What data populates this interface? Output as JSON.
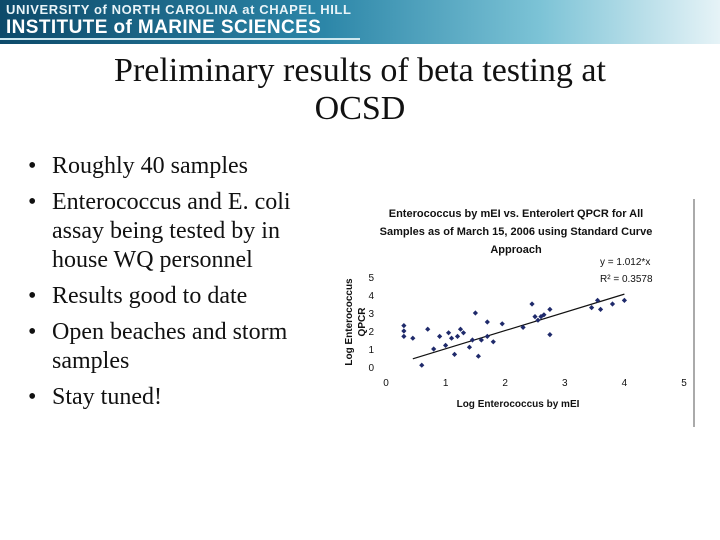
{
  "banner": {
    "line1": "UNIVERSITY of NORTH CAROLINA at CHAPEL HILL",
    "line2": "INSTITUTE of MARINE SCIENCES"
  },
  "slide": {
    "title_line1": "Preliminary results of beta testing at",
    "title_line2": "OCSD",
    "bullets": [
      "Roughly 40 samples",
      "Enterococcus and E. coli assay being tested by in house WQ personnel",
      "Results good to date",
      "Open beaches and storm samples",
      "Stay tuned!"
    ]
  },
  "chart_data": {
    "type": "scatter",
    "title_lines": [
      "Enterococcus by mEI vs. Enterolert QPCR for All",
      "Samples as of March 15, 2006 using Standard Curve",
      "Approach"
    ],
    "xlabel": "Log Enterococcus by mEI",
    "ylabel_lines": [
      "Log Enterococcus",
      "QPCR"
    ],
    "xlim": [
      0,
      5
    ],
    "ylim": [
      0,
      5
    ],
    "xticks": [
      0,
      1,
      2,
      3,
      4,
      5
    ],
    "yticks": [
      0,
      1,
      2,
      3,
      4,
      5
    ],
    "equation": "y = 1.012*x",
    "r_squared": "R² = 0.3578",
    "trendline": {
      "slope": 1.012,
      "intercept": 0,
      "x_range": [
        0.45,
        4.0
      ]
    },
    "points": [
      [
        0.3,
        2.3
      ],
      [
        0.3,
        2.0
      ],
      [
        0.3,
        1.7
      ],
      [
        0.45,
        1.6
      ],
      [
        0.6,
        0.1
      ],
      [
        0.7,
        2.1
      ],
      [
        0.8,
        1.0
      ],
      [
        0.9,
        1.7
      ],
      [
        1.0,
        1.2
      ],
      [
        1.05,
        1.9
      ],
      [
        1.1,
        1.6
      ],
      [
        1.15,
        0.7
      ],
      [
        1.2,
        1.7
      ],
      [
        1.25,
        2.1
      ],
      [
        1.3,
        1.9
      ],
      [
        1.4,
        1.1
      ],
      [
        1.45,
        1.5
      ],
      [
        1.5,
        3.0
      ],
      [
        1.55,
        0.6
      ],
      [
        1.6,
        1.5
      ],
      [
        1.7,
        1.7
      ],
      [
        1.7,
        2.5
      ],
      [
        1.8,
        1.4
      ],
      [
        1.95,
        2.4
      ],
      [
        2.3,
        2.2
      ],
      [
        2.45,
        3.5
      ],
      [
        2.5,
        2.8
      ],
      [
        2.55,
        2.6
      ],
      [
        2.6,
        2.8
      ],
      [
        2.65,
        2.9
      ],
      [
        2.75,
        3.2
      ],
      [
        2.75,
        1.8
      ],
      [
        3.45,
        3.3
      ],
      [
        3.55,
        3.7
      ],
      [
        3.6,
        3.2
      ],
      [
        3.8,
        3.5
      ],
      [
        4.0,
        3.7
      ]
    ],
    "grid": false,
    "marker_color": "#1f2a6b",
    "line_color": "#111111"
  }
}
